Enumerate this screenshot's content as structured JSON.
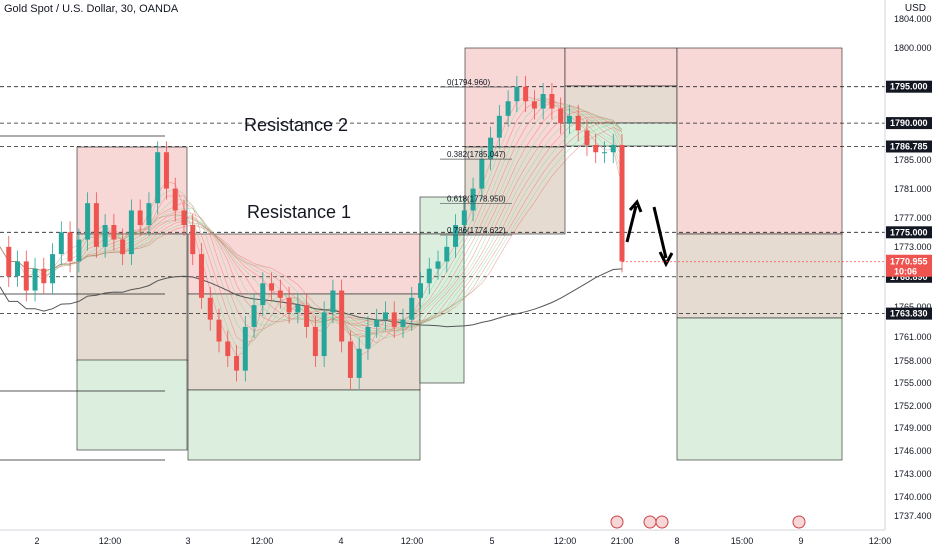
{
  "header": {
    "title": "Gold Spot / U.S. Dollar, 30, OANDA",
    "currency": "USD"
  },
  "annotations": {
    "resistance1": "Resistance 1",
    "resistance2": "Resistance 2"
  },
  "colors": {
    "bull": "#26a69a",
    "bear": "#ef5350",
    "zone_red": "#f8d7d7",
    "zone_green": "#dcefdf",
    "zone_tan": "#e5dbd0",
    "ma_line": "#555555"
  },
  "chart_data": {
    "type": "candlestick",
    "title": "Gold Spot / U.S. Dollar, 30, OANDA",
    "ylim": [
      1735.0,
      1806.5
    ],
    "y_ticks": [
      "1804.000",
      "1800.000",
      "1785.000",
      "1781.000",
      "1777.000",
      "1773.000",
      "1765.000",
      "1761.000",
      "1758.000",
      "1755.000",
      "1752.000",
      "1749.000",
      "1746.000",
      "1743.000",
      "1740.000",
      "1737.400"
    ],
    "x_ticks": [
      "2",
      "12:00",
      "3",
      "12:00",
      "4",
      "12:00",
      "5",
      "12:00",
      "21:00",
      "8",
      "15:00",
      "9",
      "12:00"
    ],
    "horizontal_levels": [
      {
        "price": 1795.0,
        "label": "1795.000",
        "style": "dashed"
      },
      {
        "price": 1790.0,
        "label": "1790.000",
        "style": "dashed"
      },
      {
        "price": 1786.785,
        "label": "1786.785",
        "style": "dashed"
      },
      {
        "price": 1775.0,
        "label": "1775.000",
        "style": "dashed"
      },
      {
        "price": 1768.89,
        "label": "1768.890",
        "style": "dashed"
      },
      {
        "price": 1763.83,
        "label": "1763.830",
        "style": "dashed"
      }
    ],
    "current_price": {
      "price": 1770.955,
      "label": "1770.955",
      "countdown": "10:06"
    },
    "fibonacci": [
      {
        "label": "0(1794.960)",
        "price": 1794.96
      },
      {
        "label": "0.382(1785.047)",
        "price": 1785.047
      },
      {
        "label": "0.618(1778.950)",
        "price": 1778.95
      },
      {
        "label": "0.786(1774.622)",
        "price": 1774.622
      }
    ],
    "price_path": [
      1773,
      1769,
      1771,
      1767,
      1770,
      1768,
      1772,
      1775,
      1771,
      1774,
      1779,
      1773,
      1776,
      1774,
      1772,
      1778,
      1776,
      1779,
      1786,
      1781,
      1778,
      1776,
      1772,
      1766,
      1763,
      1760,
      1758,
      1756,
      1762,
      1765,
      1768,
      1767,
      1766,
      1764,
      1765,
      1762,
      1758,
      1764,
      1767,
      1760,
      1755,
      1759,
      1762,
      1763,
      1764,
      1762,
      1763,
      1766,
      1768,
      1770,
      1771,
      1773,
      1776,
      1778,
      1781,
      1785,
      1788,
      1791,
      1793,
      1795,
      1793,
      1792,
      1794,
      1792,
      1790,
      1791,
      1789,
      1787,
      1786,
      1786,
      1787,
      1771
    ]
  }
}
